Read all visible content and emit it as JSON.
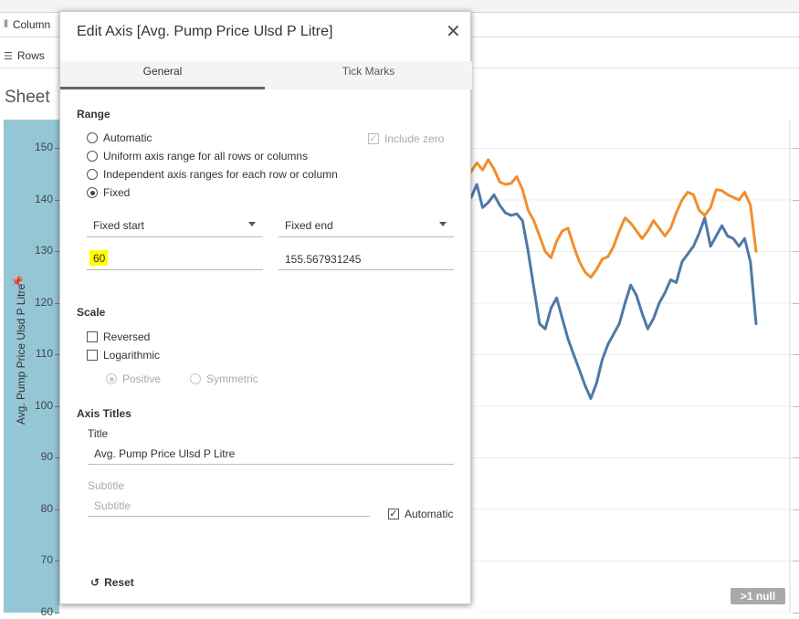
{
  "app": {
    "shelf_columns_label": "Column",
    "shelf_rows_label": "Rows",
    "sheet_title": "Sheet",
    "y_axis_title": "Avg. Pump Price Ulsd P Litre",
    "null_badge": ">1 null"
  },
  "chart_data": {
    "type": "line",
    "ylabel": "Avg. Pump Price Ulsd P Litre",
    "yticks": [
      "150",
      "140",
      "130",
      "120",
      "110",
      "100",
      "90",
      "80",
      "70",
      "60"
    ],
    "ylim": [
      60,
      155.567931245
    ],
    "series": [
      {
        "color": "#f28e2b",
        "values": [
          145.5,
          147.2,
          145.8,
          147.8,
          146.0,
          143.5,
          143.0,
          143.2,
          144.5,
          142.0,
          138.0,
          136.0,
          133.0,
          130.0,
          128.8,
          132.0,
          134.0,
          134.5,
          131.0,
          128.0,
          126.0,
          125.0,
          126.5,
          128.5,
          129.0,
          131.0,
          134.0,
          136.5,
          135.5,
          134.0,
          132.5,
          134.0,
          136.0,
          134.5,
          133.0,
          134.5,
          137.5,
          140.0,
          141.5,
          141.0,
          138.0,
          137.0,
          138.5,
          142.0,
          141.8,
          141.0,
          140.5,
          140.0,
          141.5,
          139.0,
          130.0
        ]
      },
      {
        "color": "#4e79a7",
        "values": [
          140.5,
          143.0,
          138.5,
          139.5,
          141.0,
          139.0,
          137.5,
          137.0,
          137.3,
          136.0,
          130.0,
          123.0,
          116.0,
          115.0,
          119.0,
          121.0,
          117.0,
          113.0,
          110.0,
          107.0,
          104.0,
          101.5,
          104.5,
          109.0,
          112.0,
          114.0,
          116.0,
          120.0,
          123.5,
          121.5,
          118.0,
          115.0,
          117.0,
          120.0,
          122.0,
          124.5,
          124.0,
          128.0,
          129.5,
          131.0,
          133.5,
          136.5,
          131.0,
          133.0,
          135.0,
          133.0,
          132.5,
          131.0,
          132.5,
          128.0,
          116.0
        ]
      }
    ]
  },
  "dialog": {
    "title": "Edit Axis [Avg. Pump Price Ulsd P Litre]",
    "tabs": [
      "General",
      "Tick Marks"
    ],
    "range": {
      "heading": "Range",
      "options": [
        "Automatic",
        "Uniform axis range for all rows or columns",
        "Independent axis ranges for each row or column",
        "Fixed"
      ],
      "include_zero": "Include zero",
      "fixed_start_label": "Fixed start",
      "fixed_end_label": "Fixed end",
      "fixed_start_value": "60",
      "fixed_end_value": "155.567931245"
    },
    "scale": {
      "heading": "Scale",
      "reversed": "Reversed",
      "logarithmic": "Logarithmic",
      "positive": "Positive",
      "symmetric": "Symmetric"
    },
    "axis_titles": {
      "heading": "Axis Titles",
      "title_label": "Title",
      "title_value": "Avg. Pump Price Ulsd P Litre",
      "subtitle_label": "Subtitle",
      "subtitle_placeholder": "Subtitle",
      "automatic": "Automatic"
    },
    "reset": "Reset"
  }
}
